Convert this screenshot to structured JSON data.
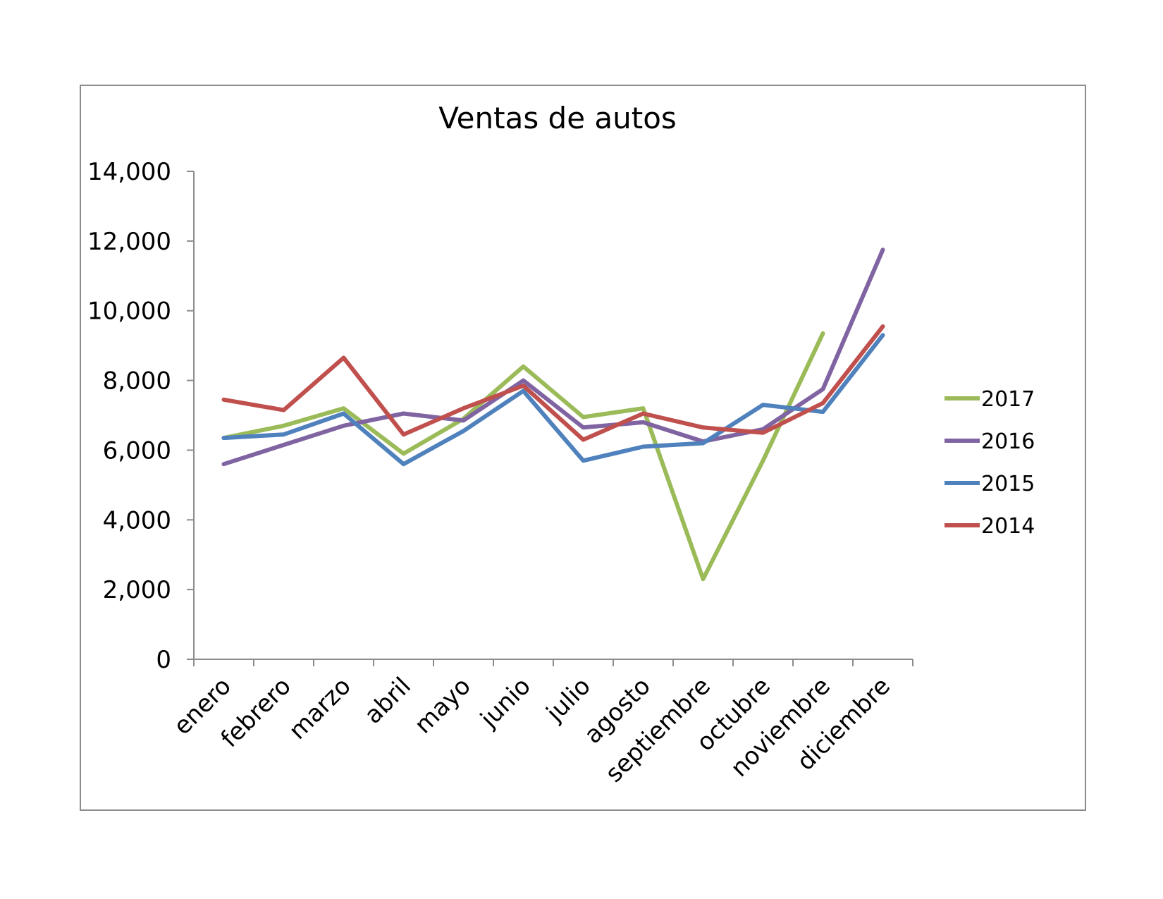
{
  "chart_data": {
    "type": "line",
    "title": "Ventas de autos",
    "xlabel": "",
    "ylabel": "",
    "ylim": [
      0,
      14000
    ],
    "yticks": [
      0,
      2000,
      4000,
      6000,
      8000,
      10000,
      12000,
      14000
    ],
    "ytick_labels": [
      "0",
      "2,000",
      "4,000",
      "6,000",
      "8,000",
      "10,000",
      "12,000",
      "14,000"
    ],
    "categories": [
      "enero",
      "febrero",
      "marzo",
      "abril",
      "mayo",
      "junio",
      "julio",
      "agosto",
      "septiembre",
      "octubre",
      "noviembre",
      "diciembre"
    ],
    "grid": false,
    "legend_position": "right",
    "series": [
      {
        "name": "2017",
        "color": "#9bbb59",
        "values": [
          6350,
          6700,
          7200,
          5900,
          6900,
          8400,
          6950,
          7200,
          2300,
          5700,
          9350,
          null
        ]
      },
      {
        "name": "2016",
        "color": "#8064a2",
        "values": [
          5600,
          6150,
          6700,
          7050,
          6850,
          8000,
          6650,
          6800,
          6250,
          6600,
          7750,
          11750
        ]
      },
      {
        "name": "2015",
        "color": "#4f81bd",
        "values": [
          6350,
          6450,
          7050,
          5600,
          6550,
          7700,
          5700,
          6100,
          6200,
          7300,
          7100,
          9300
        ]
      },
      {
        "name": "2014",
        "color": "#c0504d",
        "values": [
          7450,
          7150,
          8650,
          6450,
          7200,
          7850,
          6300,
          7050,
          6650,
          6500,
          7350,
          9550
        ]
      }
    ]
  }
}
